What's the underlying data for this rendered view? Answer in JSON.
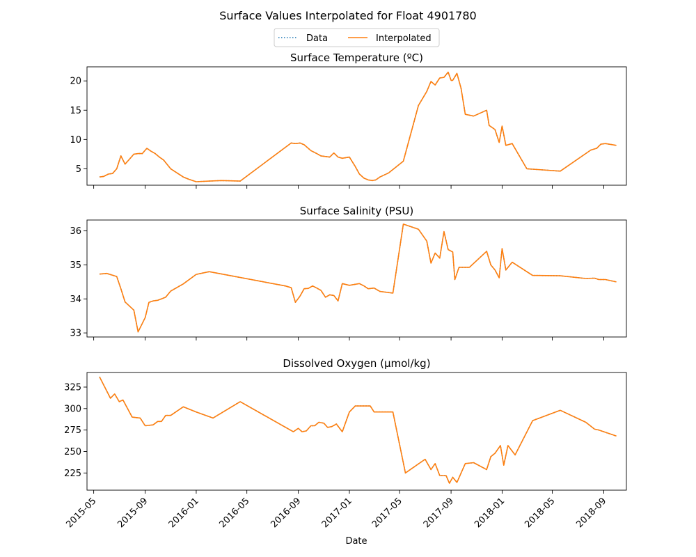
{
  "figure": {
    "title": "Surface Values Interpolated for Float 4901780",
    "legend": {
      "placement": "top-center",
      "entries": [
        "Data",
        "Interpolated"
      ]
    },
    "colors": {
      "data": "#1f77b4",
      "interpolated": "#ff7f0e"
    }
  },
  "x_axis": {
    "label": "Date",
    "ticks": [
      "2015-05",
      "2015-09",
      "2016-01",
      "2016-05",
      "2016-09",
      "2017-01",
      "2017-05",
      "2017-09",
      "2018-01",
      "2018-05",
      "2018-09"
    ],
    "range": [
      "2015-04-15",
      "2018-10-25"
    ],
    "tick_rotation": 45
  },
  "chart_data": [
    {
      "type": "line",
      "title": "Surface Temperature (ºC)",
      "ylim": [
        2.2,
        22.4
      ],
      "yticks": [
        5,
        10,
        15,
        20
      ],
      "series": [
        {
          "name": "Data",
          "style": "dotted",
          "x": [
            "2015-05-15",
            "2015-05-25",
            "2015-06-05",
            "2015-06-15",
            "2015-06-25",
            "2015-07-05",
            "2015-07-15",
            "2015-07-25",
            "2015-08-05",
            "2015-08-15",
            "2015-08-25",
            "2015-09-05",
            "2015-09-15",
            "2015-09-25",
            "2015-10-05",
            "2015-10-15",
            "2015-11-01",
            "2015-12-01",
            "2015-12-15",
            "2016-01-01",
            "2016-02-01",
            "2016-03-01",
            "2016-04-15",
            "2016-08-15",
            "2016-08-25",
            "2016-09-05",
            "2016-09-15",
            "2016-10-01",
            "2016-10-15",
            "2016-10-25",
            "2016-11-05",
            "2016-11-15",
            "2016-11-25",
            "2016-12-05",
            "2016-12-15",
            "2017-01-01",
            "2017-01-15",
            "2017-01-25",
            "2017-02-05",
            "2017-02-15",
            "2017-02-25",
            "2017-03-05",
            "2017-03-15",
            "2017-04-05",
            "2017-05-10",
            "2017-06-15",
            "2017-07-05",
            "2017-07-15",
            "2017-07-25",
            "2017-08-05",
            "2017-08-15",
            "2017-08-25",
            "2017-09-01",
            "2017-09-05",
            "2017-09-15",
            "2017-09-25",
            "2017-10-05",
            "2017-10-25",
            "2017-11-25",
            "2017-12-01",
            "2017-12-15",
            "2017-12-25",
            "2018-01-01",
            "2018-01-10",
            "2018-01-25",
            "2018-03-01",
            "2018-05-20",
            "2018-08-01",
            "2018-08-15",
            "2018-08-25",
            "2018-09-05",
            "2018-10-01"
          ],
          "values": [
            3.6,
            3.7,
            4.1,
            4.2,
            5.0,
            7.2,
            5.8,
            6.6,
            7.5,
            7.6,
            7.6,
            8.5,
            8.0,
            7.6,
            7.0,
            6.5,
            5.0,
            3.6,
            3.2,
            2.8,
            2.9,
            3.0,
            2.9,
            9.4,
            9.3,
            9.4,
            9.1,
            8.1,
            7.6,
            7.2,
            7.1,
            7.0,
            7.7,
            7.0,
            6.8,
            7.0,
            5.4,
            4.1,
            3.4,
            3.1,
            3.0,
            3.1,
            3.6,
            4.3,
            6.3,
            15.8,
            18.2,
            19.9,
            19.3,
            20.5,
            20.6,
            21.5,
            20.1,
            20.1,
            21.3,
            18.7,
            14.3,
            14.0,
            15.0,
            12.4,
            11.7,
            9.5,
            12.3,
            9.0,
            9.3,
            5.0,
            4.6,
            8.2,
            8.5,
            9.2,
            9.3,
            9.0
          ]
        },
        {
          "name": "Interpolated",
          "style": "solid",
          "x": [
            "2015-05-15",
            "2015-05-25",
            "2015-06-05",
            "2015-06-15",
            "2015-06-25",
            "2015-07-05",
            "2015-07-15",
            "2015-07-25",
            "2015-08-05",
            "2015-08-15",
            "2015-08-25",
            "2015-09-05",
            "2015-09-15",
            "2015-09-25",
            "2015-10-05",
            "2015-10-15",
            "2015-11-01",
            "2015-12-01",
            "2015-12-15",
            "2016-01-01",
            "2016-02-01",
            "2016-03-01",
            "2016-04-15",
            "2016-08-15",
            "2016-08-25",
            "2016-09-05",
            "2016-09-15",
            "2016-10-01",
            "2016-10-15",
            "2016-10-25",
            "2016-11-05",
            "2016-11-15",
            "2016-11-25",
            "2016-12-05",
            "2016-12-15",
            "2017-01-01",
            "2017-01-15",
            "2017-01-25",
            "2017-02-05",
            "2017-02-15",
            "2017-02-25",
            "2017-03-05",
            "2017-03-15",
            "2017-04-05",
            "2017-05-10",
            "2017-06-15",
            "2017-07-05",
            "2017-07-15",
            "2017-07-25",
            "2017-08-05",
            "2017-08-15",
            "2017-08-25",
            "2017-09-01",
            "2017-09-05",
            "2017-09-15",
            "2017-09-25",
            "2017-10-05",
            "2017-10-25",
            "2017-11-25",
            "2017-12-01",
            "2017-12-15",
            "2017-12-25",
            "2018-01-01",
            "2018-01-10",
            "2018-01-25",
            "2018-03-01",
            "2018-05-20",
            "2018-08-01",
            "2018-08-15",
            "2018-08-25",
            "2018-09-05",
            "2018-10-01"
          ],
          "values": [
            3.6,
            3.7,
            4.1,
            4.2,
            5.0,
            7.2,
            5.8,
            6.6,
            7.5,
            7.6,
            7.6,
            8.5,
            8.0,
            7.6,
            7.0,
            6.5,
            5.0,
            3.6,
            3.2,
            2.8,
            2.9,
            3.0,
            2.9,
            9.4,
            9.3,
            9.4,
            9.1,
            8.1,
            7.6,
            7.2,
            7.1,
            7.0,
            7.7,
            7.0,
            6.8,
            7.0,
            5.4,
            4.1,
            3.4,
            3.1,
            3.0,
            3.1,
            3.6,
            4.3,
            6.3,
            15.8,
            18.2,
            19.9,
            19.3,
            20.5,
            20.6,
            21.5,
            20.1,
            20.1,
            21.3,
            18.7,
            14.3,
            14.0,
            15.0,
            12.4,
            11.7,
            9.5,
            12.3,
            9.0,
            9.3,
            5.0,
            4.6,
            8.2,
            8.5,
            9.2,
            9.3,
            9.0
          ]
        }
      ]
    },
    {
      "type": "line",
      "title": "Surface Salinity (PSU)",
      "ylim": [
        32.88,
        36.32
      ],
      "yticks": [
        33,
        34,
        35,
        36
      ],
      "series": [
        {
          "name": "Data",
          "style": "dotted",
          "x": [
            "2015-05-15",
            "2015-06-01",
            "2015-06-25",
            "2015-07-05",
            "2015-07-15",
            "2015-08-05",
            "2015-08-15",
            "2015-09-01",
            "2015-09-10",
            "2015-09-20",
            "2015-10-01",
            "2015-10-10",
            "2015-10-20",
            "2015-11-01",
            "2015-12-01",
            "2016-01-01",
            "2016-02-01",
            "2016-08-01",
            "2016-08-15",
            "2016-08-25",
            "2016-09-05",
            "2016-09-15",
            "2016-09-25",
            "2016-10-05",
            "2016-10-15",
            "2016-10-25",
            "2016-11-05",
            "2016-11-15",
            "2016-11-25",
            "2016-12-05",
            "2016-12-15",
            "2017-01-01",
            "2017-01-15",
            "2017-01-25",
            "2017-02-05",
            "2017-02-15",
            "2017-03-01",
            "2017-03-15",
            "2017-04-15",
            "2017-05-10",
            "2017-06-15",
            "2017-07-05",
            "2017-07-15",
            "2017-07-25",
            "2017-08-05",
            "2017-08-15",
            "2017-08-25",
            "2017-09-05",
            "2017-09-10",
            "2017-09-20",
            "2017-10-01",
            "2017-10-15",
            "2017-11-25",
            "2017-12-05",
            "2017-12-15",
            "2017-12-25",
            "2018-01-01",
            "2018-01-10",
            "2018-01-25",
            "2018-03-15",
            "2018-05-20",
            "2018-07-20",
            "2018-08-10",
            "2018-08-20",
            "2018-09-05",
            "2018-10-01"
          ],
          "values": [
            34.73,
            34.75,
            34.66,
            34.3,
            33.91,
            33.67,
            33.03,
            33.45,
            33.9,
            33.94,
            33.96,
            34.0,
            34.05,
            34.23,
            34.44,
            34.72,
            34.8,
            34.38,
            34.33,
            33.9,
            34.08,
            34.3,
            34.31,
            34.38,
            34.32,
            34.25,
            34.05,
            34.12,
            34.1,
            33.94,
            34.45,
            34.4,
            34.43,
            34.45,
            34.38,
            34.3,
            34.32,
            34.22,
            34.17,
            36.2,
            36.05,
            35.7,
            35.05,
            35.35,
            35.2,
            35.98,
            35.45,
            35.38,
            34.57,
            34.93,
            34.93,
            34.93,
            35.4,
            35.0,
            34.85,
            34.62,
            35.48,
            34.85,
            35.08,
            34.69,
            34.68,
            34.6,
            34.61,
            34.57,
            34.57,
            34.5
          ]
        },
        {
          "name": "Interpolated",
          "style": "solid",
          "x": [
            "2015-05-15",
            "2015-06-01",
            "2015-06-25",
            "2015-07-05",
            "2015-07-15",
            "2015-08-05",
            "2015-08-15",
            "2015-09-01",
            "2015-09-10",
            "2015-09-20",
            "2015-10-01",
            "2015-10-10",
            "2015-10-20",
            "2015-11-01",
            "2015-12-01",
            "2016-01-01",
            "2016-02-01",
            "2016-08-01",
            "2016-08-15",
            "2016-08-25",
            "2016-09-05",
            "2016-09-15",
            "2016-09-25",
            "2016-10-05",
            "2016-10-15",
            "2016-10-25",
            "2016-11-05",
            "2016-11-15",
            "2016-11-25",
            "2016-12-05",
            "2016-12-15",
            "2017-01-01",
            "2017-01-15",
            "2017-01-25",
            "2017-02-05",
            "2017-02-15",
            "2017-03-01",
            "2017-03-15",
            "2017-04-15",
            "2017-05-10",
            "2017-06-15",
            "2017-07-05",
            "2017-07-15",
            "2017-07-25",
            "2017-08-05",
            "2017-08-15",
            "2017-08-25",
            "2017-09-05",
            "2017-09-10",
            "2017-09-20",
            "2017-10-01",
            "2017-10-15",
            "2017-11-25",
            "2017-12-05",
            "2017-12-15",
            "2017-12-25",
            "2018-01-01",
            "2018-01-10",
            "2018-01-25",
            "2018-03-15",
            "2018-05-20",
            "2018-07-20",
            "2018-08-10",
            "2018-08-20",
            "2018-09-05",
            "2018-10-01"
          ],
          "values": [
            34.73,
            34.75,
            34.66,
            34.3,
            33.91,
            33.67,
            33.03,
            33.45,
            33.9,
            33.94,
            33.96,
            34.0,
            34.05,
            34.23,
            34.44,
            34.72,
            34.8,
            34.38,
            34.33,
            33.9,
            34.08,
            34.3,
            34.31,
            34.38,
            34.32,
            34.25,
            34.05,
            34.12,
            34.1,
            33.94,
            34.45,
            34.4,
            34.43,
            34.45,
            34.38,
            34.3,
            34.32,
            34.22,
            34.17,
            36.2,
            36.05,
            35.7,
            35.05,
            35.35,
            35.2,
            35.98,
            35.45,
            35.38,
            34.57,
            34.93,
            34.93,
            34.93,
            35.4,
            35.0,
            34.85,
            34.62,
            35.48,
            34.85,
            35.08,
            34.69,
            34.68,
            34.6,
            34.61,
            34.57,
            34.57,
            34.5
          ]
        }
      ]
    },
    {
      "type": "line",
      "title": "Dissolved Oxygen (µmol/kg)",
      "ylim": [
        205,
        342
      ],
      "yticks": [
        225,
        250,
        275,
        300,
        325
      ],
      "series": [
        {
          "name": "Data",
          "style": "dotted",
          "x": [
            "2015-05-15",
            "2015-06-10",
            "2015-06-20",
            "2015-07-01",
            "2015-07-10",
            "2015-08-01",
            "2015-08-20",
            "2015-09-01",
            "2015-09-20",
            "2015-10-01",
            "2015-10-10",
            "2015-10-20",
            "2015-11-01",
            "2015-12-01",
            "2016-01-01",
            "2016-02-10",
            "2016-04-15",
            "2016-08-20",
            "2016-09-01",
            "2016-09-10",
            "2016-09-20",
            "2016-10-01",
            "2016-10-10",
            "2016-10-20",
            "2016-11-01",
            "2016-11-10",
            "2016-11-20",
            "2016-12-01",
            "2016-12-15",
            "2017-01-01",
            "2017-01-15",
            "2017-02-01",
            "2017-02-20",
            "2017-03-01",
            "2017-04-15",
            "2017-05-15",
            "2017-07-01",
            "2017-07-15",
            "2017-07-25",
            "2017-08-05",
            "2017-08-20",
            "2017-08-28",
            "2017-09-05",
            "2017-09-15",
            "2017-10-05",
            "2017-10-25",
            "2017-11-25",
            "2017-12-05",
            "2017-12-15",
            "2017-12-28",
            "2018-01-05",
            "2018-01-15",
            "2018-02-01",
            "2018-03-15",
            "2018-05-20",
            "2018-07-20",
            "2018-08-10",
            "2018-08-20",
            "2018-10-01"
          ],
          "values": [
            337,
            312,
            317,
            308,
            310,
            290,
            289,
            280,
            281,
            285,
            285,
            292,
            292,
            302,
            296,
            289,
            308,
            273,
            277,
            273,
            274,
            280,
            280,
            284,
            283,
            278,
            279,
            282,
            273,
            296,
            303,
            303,
            303,
            296,
            296,
            225,
            241,
            229,
            236,
            222,
            222,
            213,
            220,
            214,
            236,
            237,
            229,
            244,
            248,
            257,
            234,
            257,
            246,
            286,
            298,
            284,
            276,
            275,
            268
          ]
        },
        {
          "name": "Interpolated",
          "style": "solid",
          "x": [
            "2015-05-15",
            "2015-06-10",
            "2015-06-20",
            "2015-07-01",
            "2015-07-10",
            "2015-08-01",
            "2015-08-20",
            "2015-09-01",
            "2015-09-20",
            "2015-10-01",
            "2015-10-10",
            "2015-10-20",
            "2015-11-01",
            "2015-12-01",
            "2016-01-01",
            "2016-02-10",
            "2016-04-15",
            "2016-08-20",
            "2016-09-01",
            "2016-09-10",
            "2016-09-20",
            "2016-10-01",
            "2016-10-10",
            "2016-10-20",
            "2016-11-01",
            "2016-11-10",
            "2016-11-20",
            "2016-12-01",
            "2016-12-15",
            "2017-01-01",
            "2017-01-15",
            "2017-02-01",
            "2017-02-20",
            "2017-03-01",
            "2017-04-15",
            "2017-05-15",
            "2017-07-01",
            "2017-07-15",
            "2017-07-25",
            "2017-08-05",
            "2017-08-20",
            "2017-08-28",
            "2017-09-05",
            "2017-09-15",
            "2017-10-05",
            "2017-10-25",
            "2017-11-25",
            "2017-12-05",
            "2017-12-15",
            "2017-12-28",
            "2018-01-05",
            "2018-01-15",
            "2018-02-01",
            "2018-03-15",
            "2018-05-20",
            "2018-07-20",
            "2018-08-10",
            "2018-08-20",
            "2018-10-01"
          ],
          "values": [
            337,
            312,
            317,
            308,
            310,
            290,
            289,
            280,
            281,
            285,
            285,
            292,
            292,
            302,
            296,
            289,
            308,
            273,
            277,
            273,
            274,
            280,
            280,
            284,
            283,
            278,
            279,
            282,
            273,
            296,
            303,
            303,
            303,
            296,
            296,
            225,
            241,
            229,
            236,
            222,
            222,
            213,
            220,
            214,
            236,
            237,
            229,
            244,
            248,
            257,
            234,
            257,
            246,
            286,
            298,
            284,
            276,
            275,
            268
          ]
        }
      ]
    }
  ]
}
